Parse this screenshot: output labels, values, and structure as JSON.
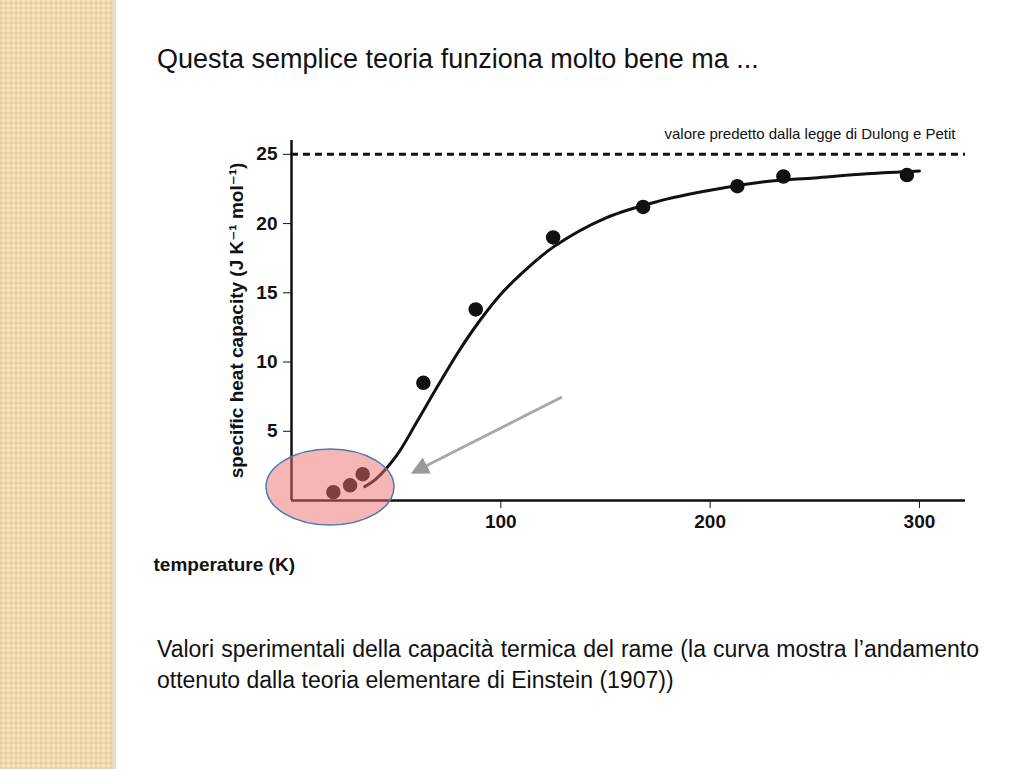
{
  "chart_data": {
    "type": "line",
    "title": "Questa semplice teoria funziona molto bene ma ...",
    "caption": "Valori sperimentali della capacità termica del rame (la curva mostra l’andamento ottenuto dalla teoria elementare di Einstein (1907))",
    "x_label": "temperature (K)",
    "y_label": "specific heat capacity (J K⁻¹ mol⁻¹)",
    "xlim": [
      0,
      322
    ],
    "ylim": [
      0,
      26
    ],
    "xticks": [
      100,
      200,
      300
    ],
    "yticks": [
      5,
      10,
      15,
      20,
      25
    ],
    "grid": false,
    "series": [
      {
        "type": "scatter",
        "marker": "circle",
        "color": "#111111",
        "x": [
          20,
          28,
          34,
          63,
          88,
          125,
          168,
          213,
          235,
          294
        ],
        "values": [
          0.6,
          1.1,
          1.9,
          8.5,
          13.8,
          19.0,
          21.2,
          22.7,
          23.4,
          23.5
        ]
      },
      {
        "type": "line",
        "line_style": "solid",
        "color": "#111111",
        "x": [
          35,
          40,
          50,
          60,
          70,
          80,
          90,
          100,
          110,
          125,
          150,
          175,
          200,
          225,
          250,
          275,
          300
        ],
        "values": [
          1.0,
          1.5,
          3.2,
          5.7,
          8.3,
          10.8,
          13.0,
          14.9,
          16.4,
          18.3,
          20.4,
          21.6,
          22.4,
          23.0,
          23.3,
          23.6,
          23.8
        ]
      }
    ],
    "reference_line": {
      "value": 25,
      "label": "valore predetto dalla legge di Dulong e Petit",
      "line_style": "dashed"
    }
  }
}
